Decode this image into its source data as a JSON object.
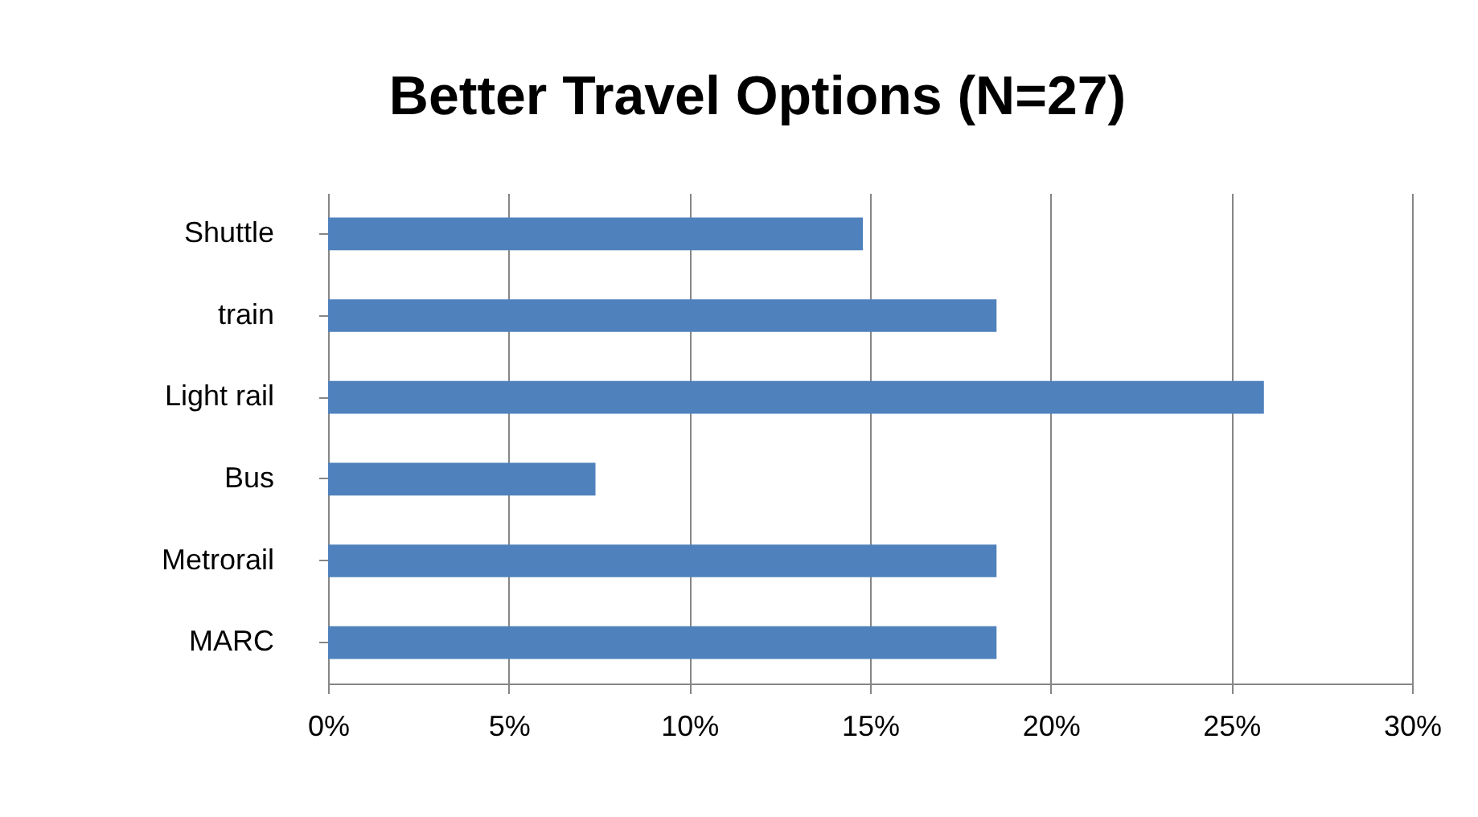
{
  "chart_data": {
    "type": "bar",
    "orientation": "horizontal",
    "title": "Better Travel Options (N=27)",
    "categories": [
      "Shuttle",
      "train",
      "Light rail",
      "Bus",
      "Metrorail",
      "MARC"
    ],
    "values": [
      14.8,
      18.5,
      25.9,
      7.4,
      18.5,
      18.5
    ],
    "color": "#4f81bd",
    "xlim": [
      0,
      30
    ],
    "xticks": [
      {
        "value": 0,
        "label": "0%"
      },
      {
        "value": 5,
        "label": "5%"
      },
      {
        "value": 10,
        "label": "10%"
      },
      {
        "value": 15,
        "label": "15%"
      },
      {
        "value": 20,
        "label": "20%"
      },
      {
        "value": 25,
        "label": "25%"
      },
      {
        "value": 30,
        "label": "30%"
      }
    ],
    "grid": "x"
  }
}
